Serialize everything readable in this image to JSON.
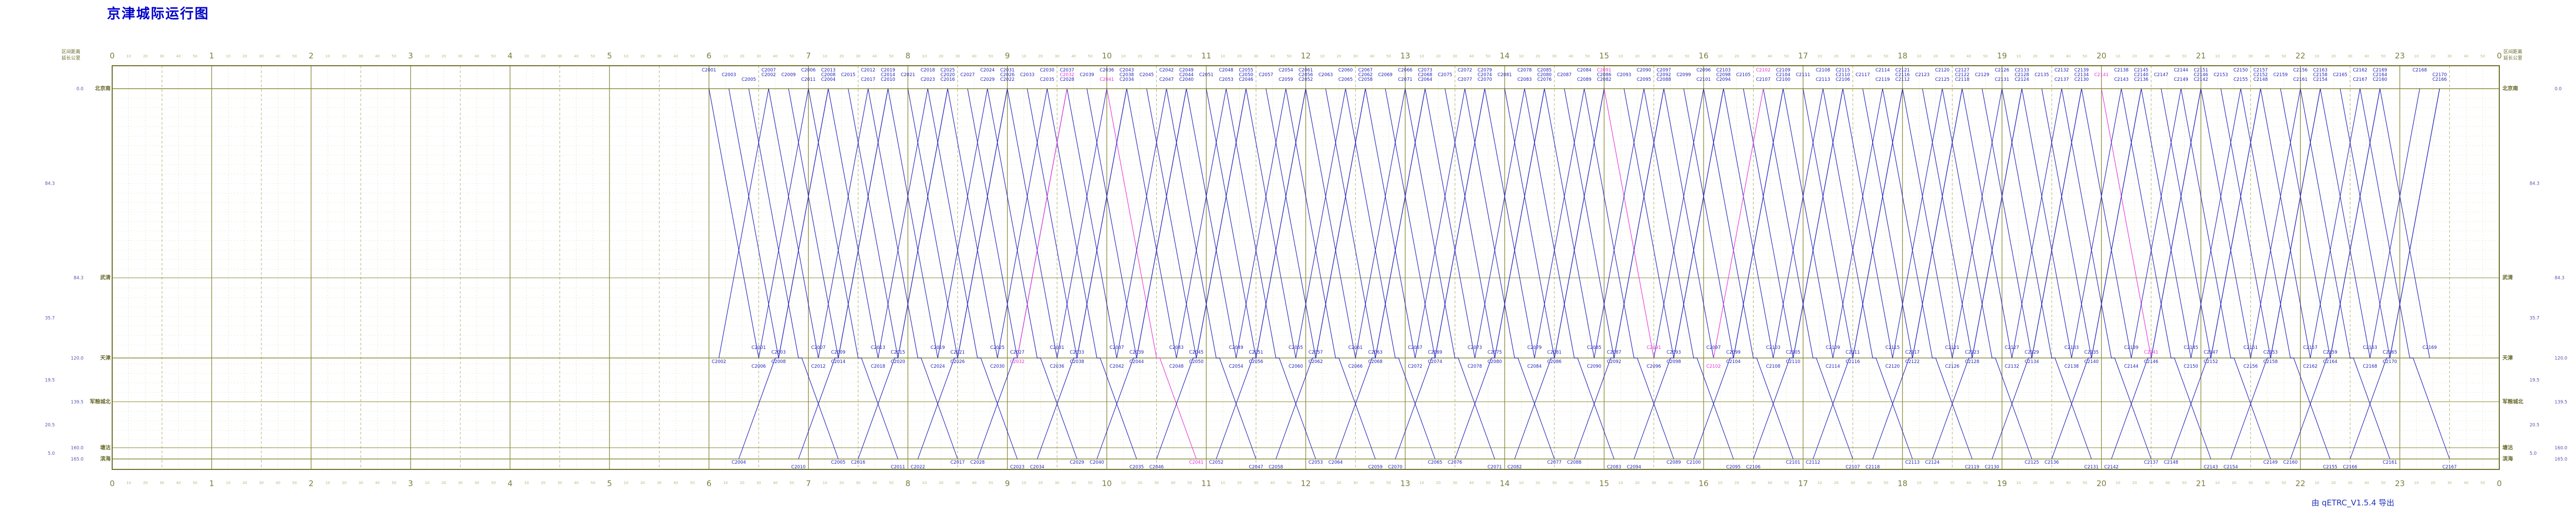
{
  "title": "京津城际运行图",
  "export_note": "由 qETRC_V1.5.4 导出",
  "panels": {
    "left": {
      "col1": "区间距离",
      "col2": "延长公里"
    },
    "right": {
      "col1": "区间距离",
      "col2": "延长公里"
    }
  },
  "axis": {
    "hours": [
      "0",
      "1",
      "2",
      "3",
      "4",
      "5",
      "6",
      "7",
      "8",
      "9",
      "10",
      "11",
      "12",
      "13",
      "14",
      "15",
      "16",
      "17",
      "18",
      "19",
      "20",
      "21",
      "22",
      "23",
      "0"
    ],
    "minute_labels": [
      "10",
      "20",
      "30",
      "40",
      "50"
    ]
  },
  "stations": [
    {
      "name": "北京南",
      "km": 0.0,
      "section": ""
    },
    {
      "name": "武清",
      "km": 84.3,
      "section": "84.3"
    },
    {
      "name": "天津",
      "km": 120.0,
      "section": "35.7"
    },
    {
      "name": "军粮城北",
      "km": 139.5,
      "section": "19.5"
    },
    {
      "name": "塘沽",
      "km": 160.0,
      "section": "20.5"
    },
    {
      "name": "滨海",
      "km": 165.0,
      "section": "5.0"
    }
  ],
  "run": {
    "bj_tj": 30,
    "dwell": 2,
    "tj_bh": 22
  },
  "colors": {
    "train": "#2222bb",
    "train_alt": "#e632d8",
    "grid_hour": "#8b8b3c",
    "grid_half": "#a8a860",
    "grid_minor": "#c4c488",
    "frame": "#70702c",
    "filler": "#cdcfa6",
    "station_name": "#6a6a2e",
    "numbers": "#5555aa",
    "axis_text": "#7d7d3c",
    "title": "#0000cc"
  },
  "trains": {
    "down": [
      "C2001|6:00|天津",
      "C2003|6:12|天津",
      "C2005|6:24|滨海",
      "C2007|6:36|天津",
      "C2009|6:48|天津",
      "C2011|7:00|滨海",
      "C2013|7:12|天津",
      "C2015|7:24|天津",
      "C2017|7:36|滨海",
      "C2019|7:48|天津",
      "C2021|8:00|天津",
      "C2023|8:12|滨海",
      "C2025|8:24|天津",
      "C2027|8:36|天津",
      "C2029|8:48|滨海",
      "C2031|9:00|天津",
      "C2033|9:12|天津",
      "C2035|9:24|滨海",
      "C2037|9:36|天津",
      "C2039|9:48|天津",
      "C2041|10:00|滨海|m",
      "C2043|10:12|天津",
      "C2045|10:24|天津",
      "C2047|10:36|滨海",
      "C2049|10:48|天津",
      "C2051|11:00|天津",
      "C2053|11:12|滨海",
      "C2055|11:24|天津",
      "C2057|11:36|天津",
      "C2059|11:48|滨海",
      "C2061|12:00|天津",
      "C2063|12:12|天津",
      "C2065|12:24|滨海",
      "C2067|12:36|天津",
      "C2069|12:48|天津",
      "C2071|13:00|滨海",
      "C2073|13:12|天津",
      "C2075|13:24|天津",
      "C2077|13:36|滨海",
      "C2079|13:48|天津",
      "C2081|14:00|天津",
      "C2083|14:12|滨海",
      "C2085|14:24|天津",
      "C2087|14:36|天津",
      "C2089|14:48|滨海",
      "C2091|15:00|天津|m",
      "C2093|15:12|天津",
      "C2095|15:24|滨海",
      "C2097|15:36|天津",
      "C2099|15:48|天津",
      "C2101|16:00|滨海",
      "C2103|16:12|天津",
      "C2105|16:24|天津",
      "C2107|16:36|滨海",
      "C2109|16:48|天津",
      "C2111|17:00|天津",
      "C2113|17:12|滨海",
      "C2115|17:24|天津",
      "C2117|17:36|天津",
      "C2119|17:48|滨海",
      "C2121|18:00|天津",
      "C2123|18:12|天津",
      "C2125|18:24|滨海",
      "C2127|18:36|天津",
      "C2129|18:48|天津",
      "C2131|19:00|滨海",
      "C2133|19:12|天津",
      "C2135|19:24|天津",
      "C2137|19:36|滨海",
      "C2139|19:48|天津",
      "C2141|20:00|天津|m",
      "C2143|20:12|滨海",
      "C2145|20:24|天津",
      "C2147|20:36|天津",
      "C2149|20:48|滨海",
      "C2151|21:00|天津",
      "C2153|21:12|天津",
      "C2155|21:24|滨海",
      "C2157|21:36|天津",
      "C2159|21:48|天津",
      "C2161|22:00|滨海",
      "C2163|22:12|天津",
      "C2165|22:24|天津",
      "C2167|22:36|滨海",
      "C2169|22:48|天津"
    ],
    "up": [
      "C2002|6:06|天津",
      "C2004|6:18|滨海",
      "C2006|6:30|天津",
      "C2008|6:42|天津",
      "C2010|6:54|滨海",
      "C2012|7:06|天津",
      "C2014|7:18|天津",
      "C2016|7:30|滨海",
      "C2018|7:42|天津",
      "C2020|7:54|天津",
      "C2022|8:06|滨海",
      "C2024|8:18|天津",
      "C2026|8:30|天津",
      "C2028|8:42|滨海",
      "C2030|8:54|天津",
      "C2032|9:06|天津|m",
      "C2034|9:18|滨海",
      "C2036|9:30|天津",
      "C2038|9:42|天津",
      "C2040|9:54|滨海",
      "C2042|10:06|天津",
      "C2044|10:18|天津",
      "C2046|10:30|滨海",
      "C2048|10:42|天津",
      "C2050|10:54|天津",
      "C2052|11:06|滨海",
      "C2054|11:18|天津",
      "C2056|11:30|天津",
      "C2058|11:42|滨海",
      "C2060|11:54|天津",
      "C2062|12:06|天津",
      "C2064|12:18|滨海",
      "C2066|12:30|天津",
      "C2068|12:42|天津",
      "C2070|12:54|滨海",
      "C2072|13:06|天津",
      "C2074|13:18|天津",
      "C2076|13:30|滨海",
      "C2078|13:42|天津",
      "C2080|13:54|天津",
      "C2082|14:06|滨海",
      "C2084|14:18|天津",
      "C2086|14:30|天津",
      "C2088|14:42|滨海",
      "C2090|14:54|天津",
      "C2092|15:06|天津",
      "C2094|15:18|滨海",
      "C2096|15:30|天津",
      "C2098|15:42|天津",
      "C2100|15:54|滨海",
      "C2102|16:06|天津|m",
      "C2104|16:18|天津",
      "C2106|16:30|滨海",
      "C2108|16:42|天津",
      "C2110|16:54|天津",
      "C2112|17:06|滨海",
      "C2114|17:18|天津",
      "C2116|17:30|天津",
      "C2118|17:42|滨海",
      "C2120|17:54|天津",
      "C2122|18:06|天津",
      "C2124|18:18|滨海",
      "C2126|18:30|天津",
      "C2128|18:42|天津",
      "C2130|18:54|滨海",
      "C2132|19:06|天津",
      "C2134|19:18|天津",
      "C2136|19:30|滨海",
      "C2138|19:42|天津",
      "C2140|19:54|天津",
      "C2142|20:06|滨海",
      "C2144|20:18|天津",
      "C2146|20:30|天津",
      "C2148|20:42|滨海",
      "C2150|20:54|天津",
      "C2152|21:06|天津",
      "C2154|21:18|滨海",
      "C2156|21:30|天津",
      "C2158|21:42|天津",
      "C2160|21:54|滨海",
      "C2162|22:06|天津",
      "C2164|22:18|天津",
      "C2166|22:30|滨海",
      "C2168|22:42|天津",
      "C2170|22:54|天津"
    ]
  }
}
